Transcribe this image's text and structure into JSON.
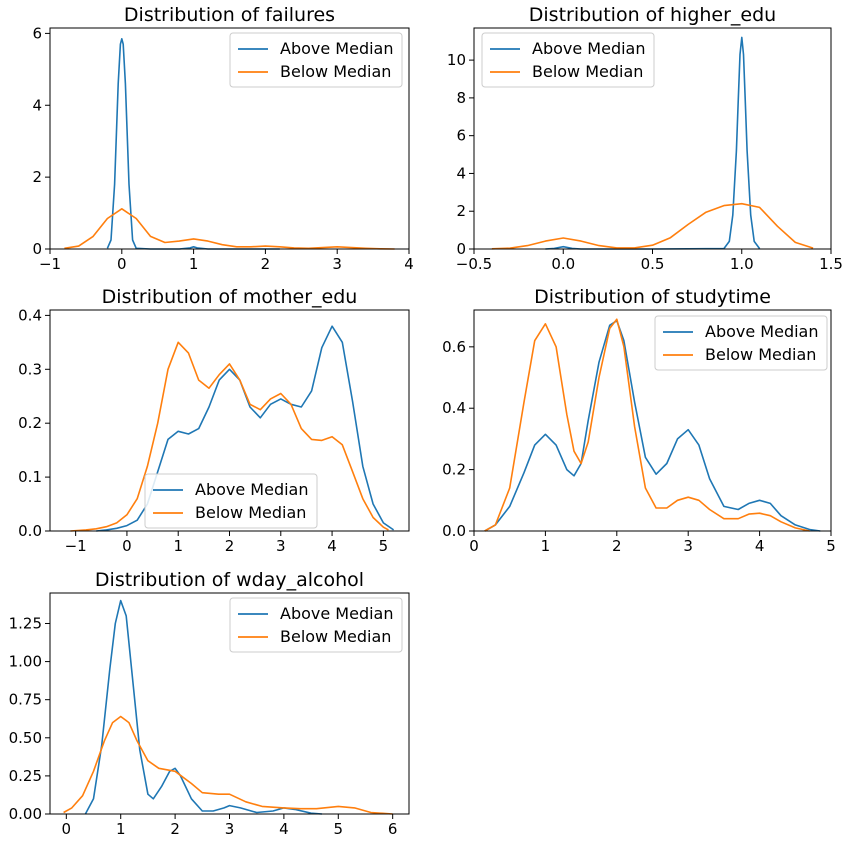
{
  "colors": {
    "above": "#1f77b4",
    "below": "#ff7f0e"
  },
  "legend_labels": [
    "Above Median",
    "Below Median"
  ],
  "chart_data": [
    {
      "type": "line",
      "title": "Distribution of failures",
      "xlim": [
        -1,
        4
      ],
      "ylim": [
        0,
        6.15
      ],
      "xticks": [
        -1,
        0,
        1,
        2,
        3,
        4
      ],
      "xtick_labels": [
        "−1",
        "0",
        "1",
        "2",
        "3",
        "4"
      ],
      "yticks": [
        0,
        2,
        4,
        6
      ],
      "ytick_labels": [
        "0",
        "2",
        "4",
        "6"
      ],
      "legend_position": "upper right",
      "series": [
        {
          "name": "Above Median",
          "x": [
            -0.2,
            -0.15,
            -0.1,
            -0.05,
            -0.02,
            0,
            0.02,
            0.05,
            0.1,
            0.15,
            0.2,
            0.4,
            0.8,
            0.95,
            1,
            1.05,
            1.2,
            2,
            2.2
          ],
          "y": [
            0.02,
            0.25,
            1.8,
            4.6,
            5.7,
            5.85,
            5.7,
            4.6,
            1.8,
            0.25,
            0.02,
            0,
            0,
            0.03,
            0.06,
            0.03,
            0,
            0,
            0
          ]
        },
        {
          "name": "Below Median",
          "x": [
            -0.8,
            -0.6,
            -0.4,
            -0.2,
            0,
            0.2,
            0.4,
            0.6,
            0.8,
            1,
            1.2,
            1.4,
            1.6,
            1.8,
            2,
            2.2,
            2.4,
            2.6,
            2.8,
            3,
            3.2,
            3.4,
            3.6,
            3.8
          ],
          "y": [
            0.02,
            0.08,
            0.35,
            0.85,
            1.12,
            0.85,
            0.35,
            0.18,
            0.22,
            0.28,
            0.22,
            0.12,
            0.06,
            0.06,
            0.08,
            0.06,
            0.03,
            0.02,
            0.04,
            0.06,
            0.04,
            0.02,
            0.005,
            0
          ]
        }
      ]
    },
    {
      "type": "line",
      "title": "Distribution of higher_edu",
      "xlim": [
        -0.5,
        1.5
      ],
      "ylim": [
        0,
        11.7
      ],
      "xticks": [
        -0.5,
        0,
        0.5,
        1,
        1.5
      ],
      "xtick_labels": [
        "−0.5",
        "0.0",
        "0.5",
        "1.0",
        "1.5"
      ],
      "yticks": [
        0,
        2,
        4,
        6,
        8,
        10
      ],
      "ytick_labels": [
        "0",
        "2",
        "4",
        "6",
        "8",
        "10"
      ],
      "legend_position": "upper left",
      "series": [
        {
          "name": "Above Median",
          "x": [
            -0.1,
            -0.05,
            0,
            0.05,
            0.1,
            0.5,
            0.9,
            0.93,
            0.95,
            0.97,
            0.98,
            0.99,
            1,
            1.01,
            1.02,
            1.03,
            1.05,
            1.07,
            1.1
          ],
          "y": [
            0,
            0.03,
            0.12,
            0.03,
            0,
            0,
            0.02,
            0.4,
            1.8,
            5.2,
            7.8,
            10.3,
            11.2,
            10.3,
            7.8,
            5.2,
            1.8,
            0.4,
            0.02
          ]
        },
        {
          "name": "Below Median",
          "x": [
            -0.4,
            -0.3,
            -0.2,
            -0.1,
            0,
            0.1,
            0.2,
            0.3,
            0.4,
            0.5,
            0.6,
            0.7,
            0.8,
            0.9,
            1,
            1.1,
            1.2,
            1.3,
            1.4
          ],
          "y": [
            0.01,
            0.04,
            0.18,
            0.42,
            0.58,
            0.42,
            0.18,
            0.06,
            0.06,
            0.2,
            0.6,
            1.3,
            1.95,
            2.3,
            2.4,
            2.2,
            1.2,
            0.35,
            0.05
          ]
        }
      ]
    },
    {
      "type": "line",
      "title": "Distribution of mother_edu",
      "xlim": [
        -1.5,
        5.5
      ],
      "ylim": [
        0,
        0.41
      ],
      "xticks": [
        -1,
        0,
        1,
        2,
        3,
        4,
        5
      ],
      "xtick_labels": [
        "−1",
        "0",
        "1",
        "2",
        "3",
        "4",
        "5"
      ],
      "yticks": [
        0,
        0.1,
        0.2,
        0.3,
        0.4
      ],
      "ytick_labels": [
        "0.0",
        "0.1",
        "0.2",
        "0.3",
        "0.4"
      ],
      "legend_position": "lower center",
      "series": [
        {
          "name": "Above Median",
          "x": [
            -0.6,
            -0.4,
            -0.2,
            0,
            0.2,
            0.4,
            0.6,
            0.8,
            1,
            1.2,
            1.4,
            1.6,
            1.8,
            2,
            2.2,
            2.4,
            2.6,
            2.8,
            3,
            3.2,
            3.4,
            3.6,
            3.8,
            4,
            4.2,
            4.4,
            4.6,
            4.8,
            5,
            5.2
          ],
          "y": [
            0,
            0.002,
            0.005,
            0.01,
            0.02,
            0.05,
            0.11,
            0.17,
            0.185,
            0.18,
            0.19,
            0.23,
            0.28,
            0.3,
            0.28,
            0.23,
            0.21,
            0.235,
            0.245,
            0.235,
            0.23,
            0.26,
            0.34,
            0.38,
            0.35,
            0.24,
            0.12,
            0.05,
            0.015,
            0.002
          ]
        },
        {
          "name": "Below Median",
          "x": [
            -1.1,
            -0.8,
            -0.6,
            -0.4,
            -0.2,
            0,
            0.2,
            0.4,
            0.6,
            0.8,
            1,
            1.2,
            1.4,
            1.6,
            1.8,
            2,
            2.2,
            2.4,
            2.6,
            2.8,
            3,
            3.2,
            3.4,
            3.6,
            3.8,
            4,
            4.2,
            4.4,
            4.6,
            4.8,
            5,
            5.1
          ],
          "y": [
            0,
            0.002,
            0.004,
            0.008,
            0.015,
            0.03,
            0.06,
            0.12,
            0.2,
            0.3,
            0.35,
            0.33,
            0.28,
            0.265,
            0.29,
            0.31,
            0.28,
            0.235,
            0.225,
            0.245,
            0.255,
            0.235,
            0.19,
            0.17,
            0.168,
            0.175,
            0.16,
            0.11,
            0.06,
            0.025,
            0.007,
            0.002
          ]
        }
      ]
    },
    {
      "type": "line",
      "title": "Distribution of studytime",
      "xlim": [
        0,
        5
      ],
      "ylim": [
        0,
        0.72
      ],
      "xticks": [
        0,
        1,
        2,
        3,
        4,
        5
      ],
      "xtick_labels": [
        "0",
        "1",
        "2",
        "3",
        "4",
        "5"
      ],
      "yticks": [
        0,
        0.2,
        0.4,
        0.6
      ],
      "ytick_labels": [
        "0.0",
        "0.2",
        "0.4",
        "0.6"
      ],
      "legend_position": "upper right",
      "series": [
        {
          "name": "Above Median",
          "x": [
            0.15,
            0.3,
            0.5,
            0.7,
            0.85,
            1,
            1.15,
            1.3,
            1.4,
            1.5,
            1.6,
            1.75,
            1.9,
            2,
            2.1,
            2.25,
            2.4,
            2.55,
            2.7,
            2.85,
            3,
            3.15,
            3.3,
            3.5,
            3.7,
            3.85,
            4,
            4.15,
            4.3,
            4.5,
            4.7,
            4.85
          ],
          "y": [
            0,
            0.02,
            0.08,
            0.19,
            0.28,
            0.315,
            0.28,
            0.2,
            0.18,
            0.22,
            0.36,
            0.55,
            0.67,
            0.685,
            0.62,
            0.42,
            0.24,
            0.185,
            0.22,
            0.3,
            0.33,
            0.28,
            0.17,
            0.08,
            0.07,
            0.09,
            0.1,
            0.09,
            0.05,
            0.02,
            0.005,
            0
          ]
        },
        {
          "name": "Below Median",
          "x": [
            0.15,
            0.3,
            0.5,
            0.7,
            0.85,
            1,
            1.15,
            1.3,
            1.4,
            1.5,
            1.6,
            1.75,
            1.9,
            2,
            2.1,
            2.25,
            2.4,
            2.55,
            2.7,
            2.85,
            3,
            3.15,
            3.3,
            3.5,
            3.7,
            3.85,
            4,
            4.15,
            4.3,
            4.5,
            4.7
          ],
          "y": [
            0,
            0.02,
            0.14,
            0.42,
            0.62,
            0.675,
            0.6,
            0.38,
            0.26,
            0.22,
            0.29,
            0.5,
            0.66,
            0.69,
            0.6,
            0.34,
            0.14,
            0.075,
            0.075,
            0.1,
            0.11,
            0.1,
            0.07,
            0.04,
            0.04,
            0.055,
            0.058,
            0.05,
            0.03,
            0.01,
            0
          ]
        }
      ]
    },
    {
      "type": "line",
      "title": "Distribution of wday_alcohol",
      "xlim": [
        -0.3,
        6.3
      ],
      "ylim": [
        0,
        1.45
      ],
      "xticks": [
        0,
        1,
        2,
        3,
        4,
        5,
        6
      ],
      "xtick_labels": [
        "0",
        "1",
        "2",
        "3",
        "4",
        "5",
        "6"
      ],
      "yticks": [
        0,
        0.25,
        0.5,
        0.75,
        1,
        1.25
      ],
      "ytick_labels": [
        "0.00",
        "0.25",
        "0.50",
        "0.75",
        "1.00",
        "1.25"
      ],
      "legend_position": "upper right",
      "series": [
        {
          "name": "Above Median",
          "x": [
            0.35,
            0.5,
            0.65,
            0.8,
            0.9,
            1,
            1.1,
            1.2,
            1.35,
            1.5,
            1.6,
            1.75,
            1.9,
            2,
            2.1,
            2.3,
            2.5,
            2.7,
            2.9,
            3,
            3.2,
            3.5,
            3.8,
            4,
            4.2,
            4.5,
            4.7
          ],
          "y": [
            0,
            0.1,
            0.45,
            0.95,
            1.25,
            1.4,
            1.3,
            0.95,
            0.42,
            0.13,
            0.1,
            0.18,
            0.28,
            0.3,
            0.25,
            0.1,
            0.02,
            0.02,
            0.04,
            0.055,
            0.04,
            0.01,
            0.02,
            0.04,
            0.03,
            0.005,
            0
          ]
        },
        {
          "name": "Below Median",
          "x": [
            -0.05,
            0.1,
            0.3,
            0.5,
            0.7,
            0.85,
            1,
            1.15,
            1.3,
            1.5,
            1.7,
            2,
            2.3,
            2.5,
            2.8,
            3,
            3.3,
            3.6,
            4,
            4.3,
            4.6,
            5,
            5.3,
            5.6,
            6
          ],
          "y": [
            0.01,
            0.04,
            0.12,
            0.28,
            0.48,
            0.6,
            0.64,
            0.6,
            0.48,
            0.35,
            0.3,
            0.28,
            0.2,
            0.14,
            0.13,
            0.13,
            0.08,
            0.05,
            0.04,
            0.035,
            0.035,
            0.05,
            0.04,
            0.01,
            0
          ]
        }
      ]
    }
  ]
}
